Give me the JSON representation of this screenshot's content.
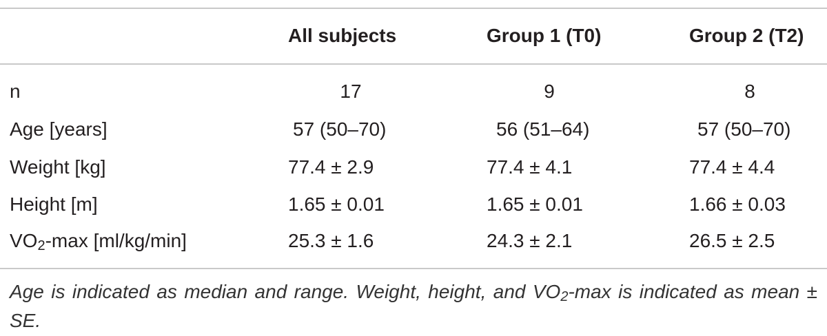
{
  "table": {
    "columns": [
      "All subjects",
      "Group 1 (T0)",
      "Group 2 (T2)"
    ],
    "rows": [
      {
        "label": "n",
        "values": [
          "17",
          "9",
          "8"
        ]
      },
      {
        "label": "Age [years]",
        "values": [
          "57 (50–70)",
          "56 (51–64)",
          "57 (50–70)"
        ]
      },
      {
        "label": "Weight [kg]",
        "values": [
          "77.4 ± 2.9",
          "77.4 ± 4.1",
          "77.4 ± 4.4"
        ]
      },
      {
        "label": "Height [m]",
        "values": [
          "1.65 ± 0.01",
          "1.65 ± 0.01",
          "1.66 ± 0.03"
        ]
      },
      {
        "label": {
          "main": "VO",
          "sub": "2",
          "rest": "-max [ml/kg/min]"
        },
        "values": [
          "25.3 ± 1.6",
          "24.3 ± 2.1",
          "26.5 ± 2.5"
        ]
      }
    ],
    "footnote": {
      "main": "Age is indicated as median and range. Weight, height, and VO",
      "sub": "2",
      "rest": "-max is indicated as mean ± SE."
    }
  }
}
